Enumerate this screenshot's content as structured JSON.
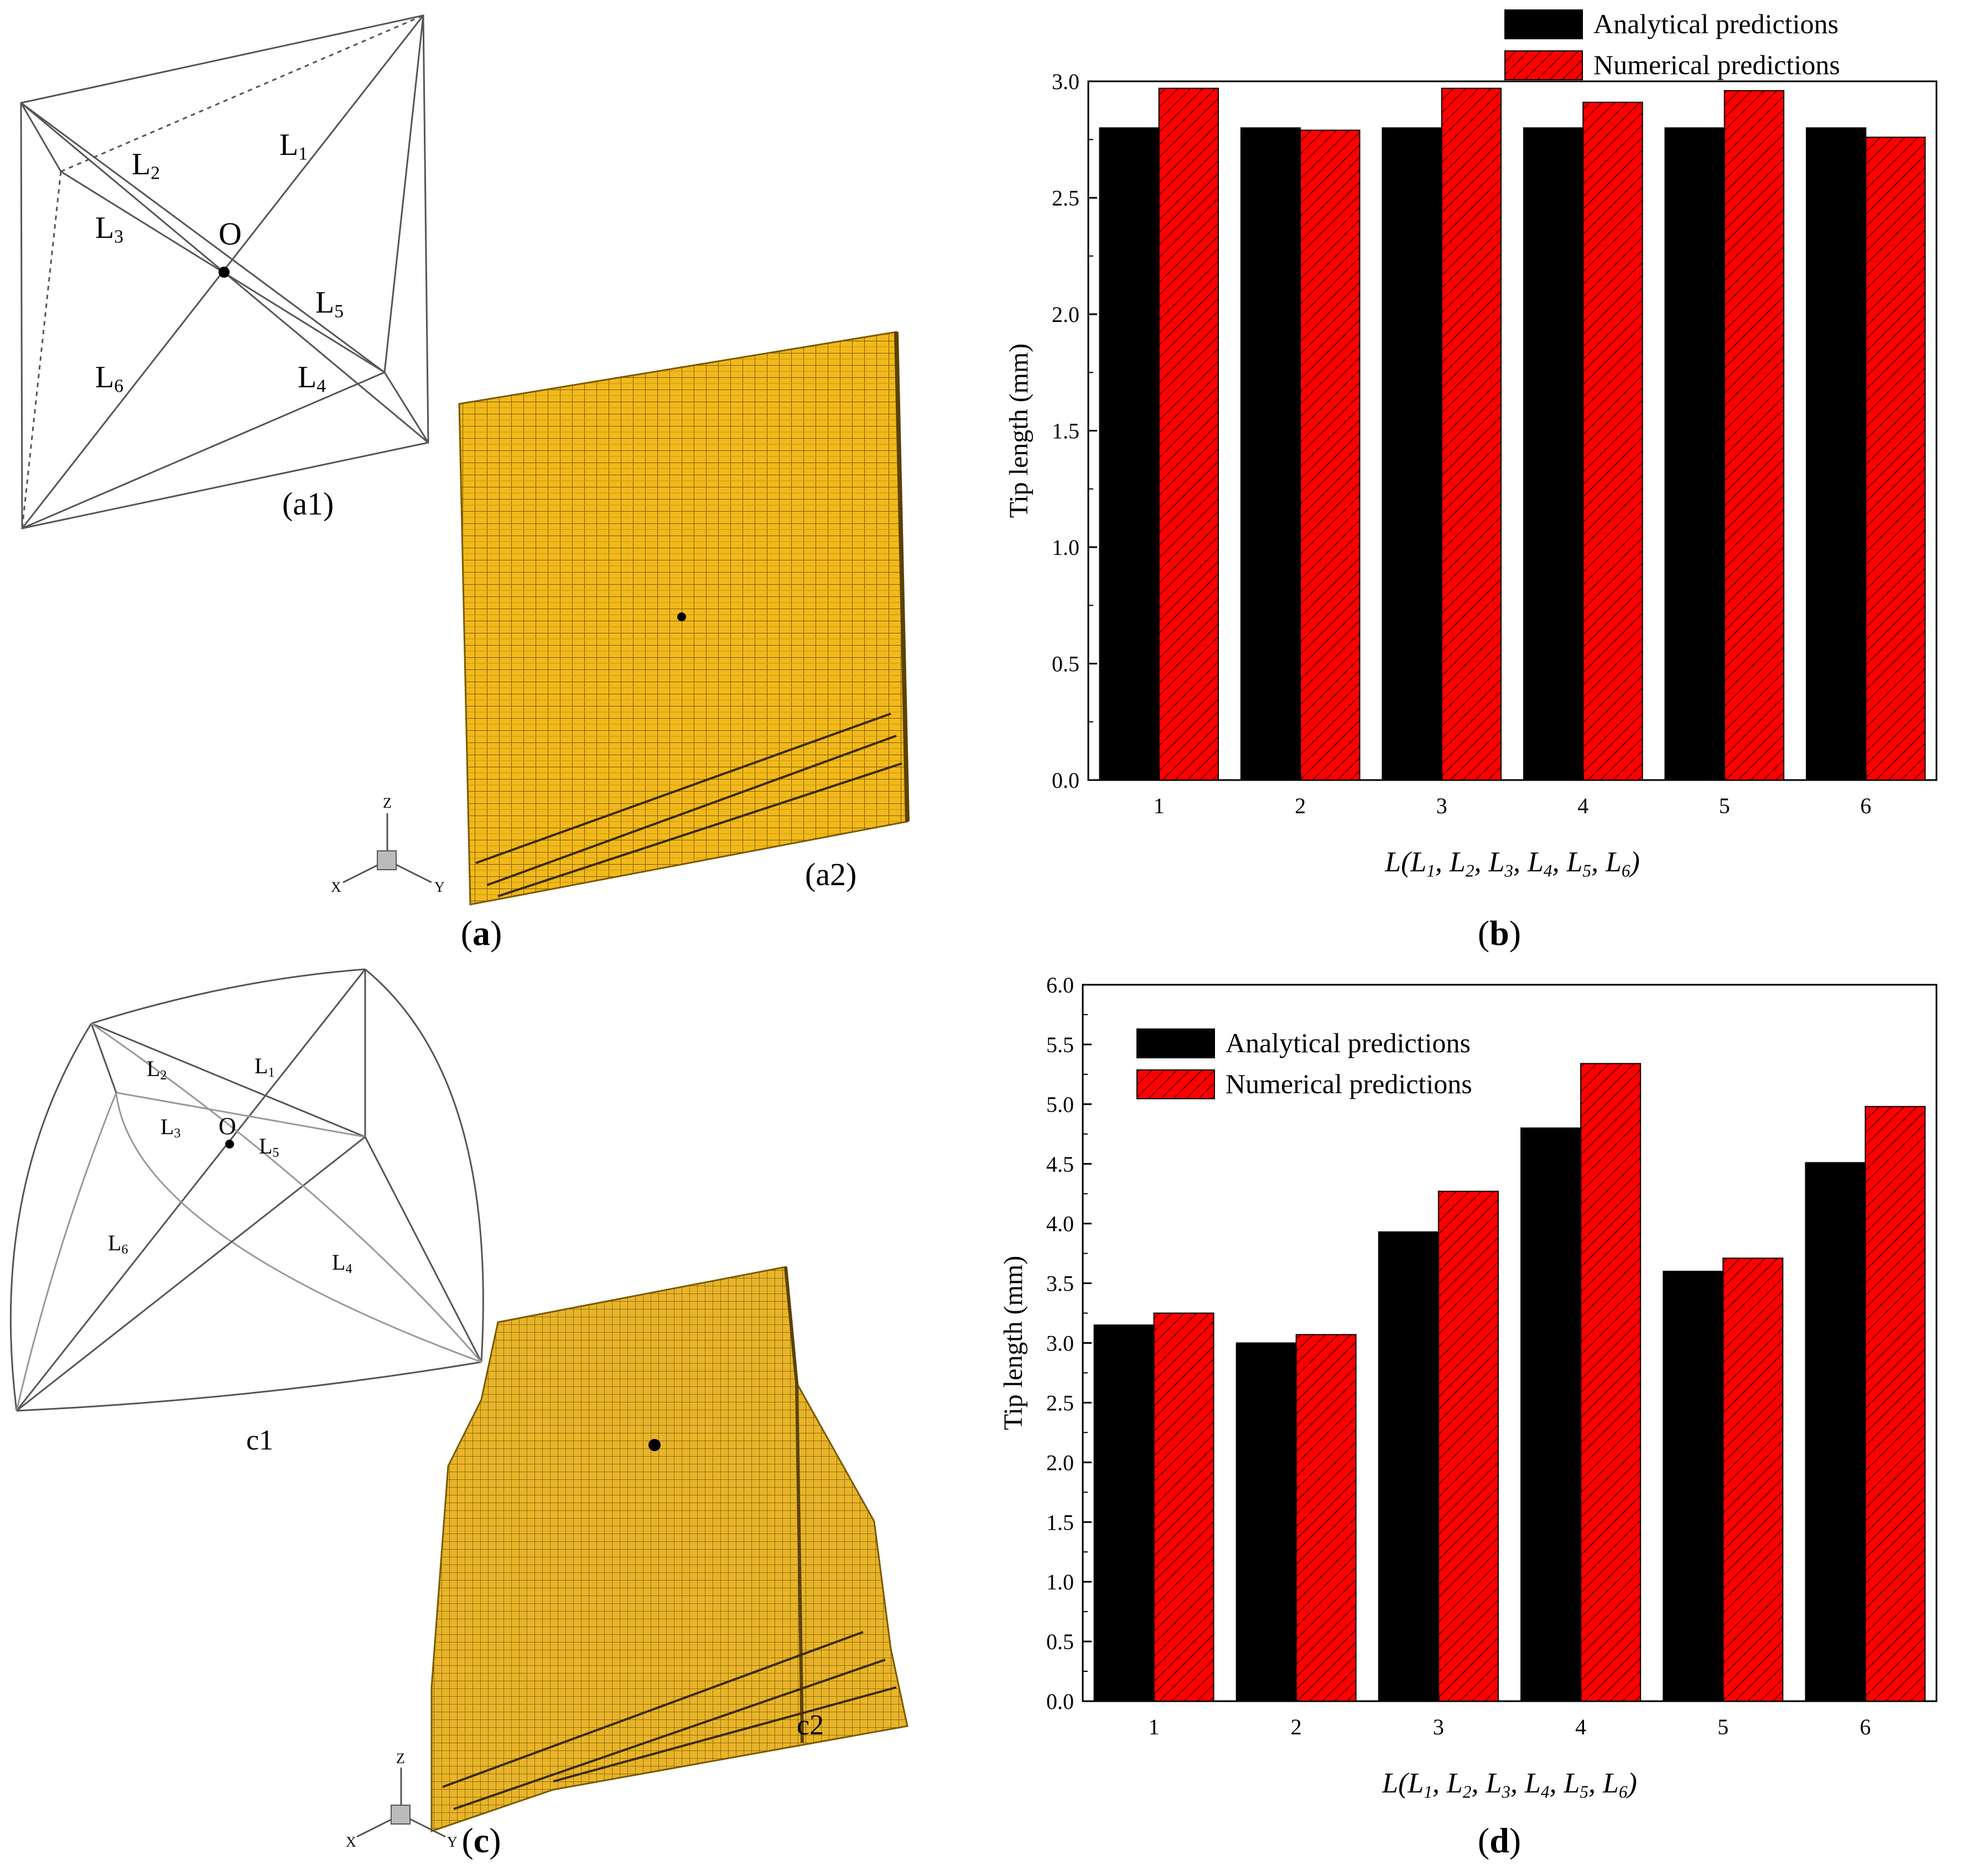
{
  "colors": {
    "analytical": "#000000",
    "numerical": "#ff0000",
    "voxel": "#f2b91c",
    "voxel_edge": "#6b4f00"
  },
  "panel_a": {
    "caption_open": "(",
    "caption_letter": "a",
    "caption_close": ")",
    "sub1": "(a1)",
    "sub2": "(a2)",
    "center_label": "O",
    "labels": [
      "L1",
      "L2",
      "L3",
      "L4",
      "L5",
      "L6"
    ],
    "axes": {
      "z": "Z",
      "x": "X",
      "y": "Y"
    }
  },
  "panel_c": {
    "caption_open": "(",
    "caption_letter": "c",
    "caption_close": ")",
    "sub1": "c1",
    "sub2": "c2",
    "center_label": "O",
    "labels": [
      "L1",
      "L2",
      "L3",
      "L4",
      "L5",
      "L6"
    ],
    "axes": {
      "z": "Z",
      "x": "X",
      "y": "Y"
    }
  },
  "panel_b": {
    "caption_open": "(",
    "caption_letter": "b",
    "caption_close": ")"
  },
  "panel_d": {
    "caption_open": "(",
    "caption_letter": "d",
    "caption_close": ")"
  },
  "chart_data": [
    {
      "id": "b",
      "type": "bar",
      "categories": [
        "1",
        "2",
        "3",
        "4",
        "5",
        "6"
      ],
      "series": [
        {
          "name": "Analytical predictions",
          "values": [
            2.8,
            2.8,
            2.8,
            2.8,
            2.8,
            2.8
          ]
        },
        {
          "name": "Numerical predictions",
          "values": [
            2.97,
            2.79,
            2.97,
            2.91,
            2.96,
            2.76
          ]
        }
      ],
      "ylabel": "Tip length (mm)",
      "xlabel": "L(L1, L2, L3, L4, L5, L6)",
      "ylim": [
        0,
        3.0
      ],
      "yticks": [
        "0.0",
        "0.5",
        "1.0",
        "1.5",
        "2.0",
        "2.5",
        "3.0"
      ],
      "legend": "top-right-outside"
    },
    {
      "id": "d",
      "type": "bar",
      "categories": [
        "1",
        "2",
        "3",
        "4",
        "5",
        "6"
      ],
      "series": [
        {
          "name": "Analytical predictions",
          "values": [
            3.15,
            3.0,
            3.93,
            4.8,
            3.6,
            4.51
          ]
        },
        {
          "name": "Numerical predictions",
          "values": [
            3.25,
            3.07,
            4.27,
            5.34,
            3.71,
            4.98
          ]
        }
      ],
      "ylabel": "Tip length (mm)",
      "xlabel": "L(L1, L2, L3, L4, L5, L6)",
      "ylim": [
        0,
        6.0
      ],
      "yticks": [
        "0.0",
        "0.5",
        "1.0",
        "1.5",
        "2.0",
        "2.5",
        "3.0",
        "3.5",
        "4.0",
        "4.5",
        "5.0",
        "5.5",
        "6.0"
      ],
      "legend": "top-left"
    }
  ]
}
